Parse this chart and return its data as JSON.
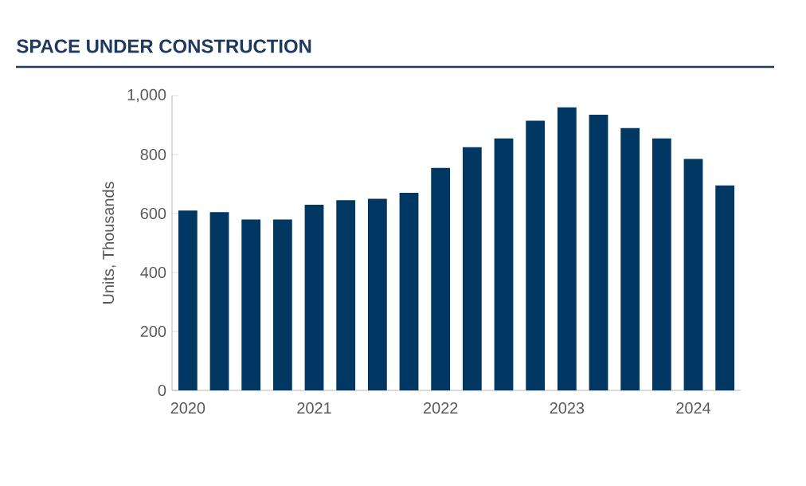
{
  "chart_data": {
    "type": "bar",
    "title": "SPACE UNDER CONSTRUCTION",
    "ylabel": "Units, Thousands",
    "categories": [
      "2020",
      null,
      null,
      null,
      "2021",
      null,
      null,
      null,
      "2022",
      null,
      null,
      null,
      "2023",
      null,
      null,
      null,
      "2024",
      null
    ],
    "values": [
      610,
      605,
      580,
      580,
      630,
      645,
      650,
      670,
      755,
      825,
      855,
      915,
      960,
      935,
      890,
      855,
      785,
      695
    ],
    "color": "#003763",
    "ylim": [
      0,
      1000
    ],
    "yticks": [
      0,
      200,
      400,
      600,
      800,
      {
        "value": 1000,
        "label": "1,000"
      }
    ],
    "grid": false
  }
}
